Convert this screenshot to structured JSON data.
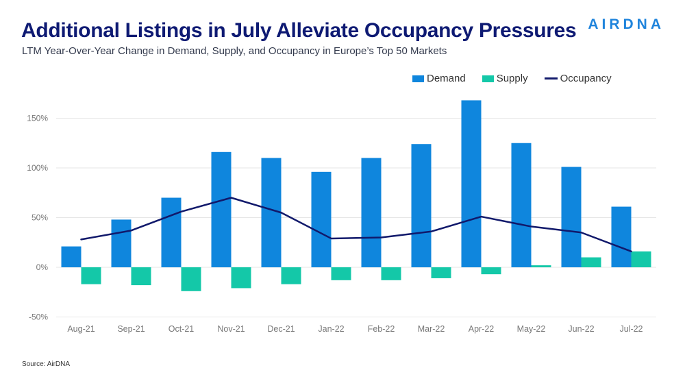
{
  "header": {
    "title": "Additional Listings in July Alleviate Occupancy Pressures",
    "subtitle": "LTM Year-Over-Year Change in Demand, Supply, and Occupancy in Europe’s Top 50 Markets",
    "logo_text": "AIRDNA"
  },
  "footer": {
    "source": "Source: AirDNA"
  },
  "colors": {
    "demand": "#0f86dd",
    "supply": "#14c8a8",
    "occupancy": "#11196b",
    "grid": "#e6e6e6",
    "tick_text": "#777777"
  },
  "chart_data": {
    "type": "bar",
    "categories": [
      "Aug-21",
      "Sep-21",
      "Oct-21",
      "Nov-21",
      "Dec-21",
      "Jan-22",
      "Feb-22",
      "Mar-22",
      "Apr-22",
      "May-22",
      "Jun-22",
      "Jul-22"
    ],
    "series": [
      {
        "name": "Demand",
        "type": "bar",
        "values": [
          21,
          48,
          70,
          116,
          110,
          96,
          110,
          124,
          168,
          125,
          101,
          61
        ]
      },
      {
        "name": "Supply",
        "type": "bar",
        "values": [
          -17,
          -18,
          -24,
          -21,
          -17,
          -13,
          -13,
          -11,
          -7,
          2,
          10,
          16
        ]
      },
      {
        "name": "Occupancy",
        "type": "line",
        "values": [
          28,
          37,
          56,
          70,
          55,
          29,
          30,
          36,
          51,
          41,
          35,
          16
        ]
      }
    ],
    "y_ticks": [
      150,
      100,
      50,
      0,
      -50
    ],
    "y_tick_format": "%",
    "ylim": [
      -50,
      168
    ],
    "grid": true,
    "legend": "top-right"
  }
}
